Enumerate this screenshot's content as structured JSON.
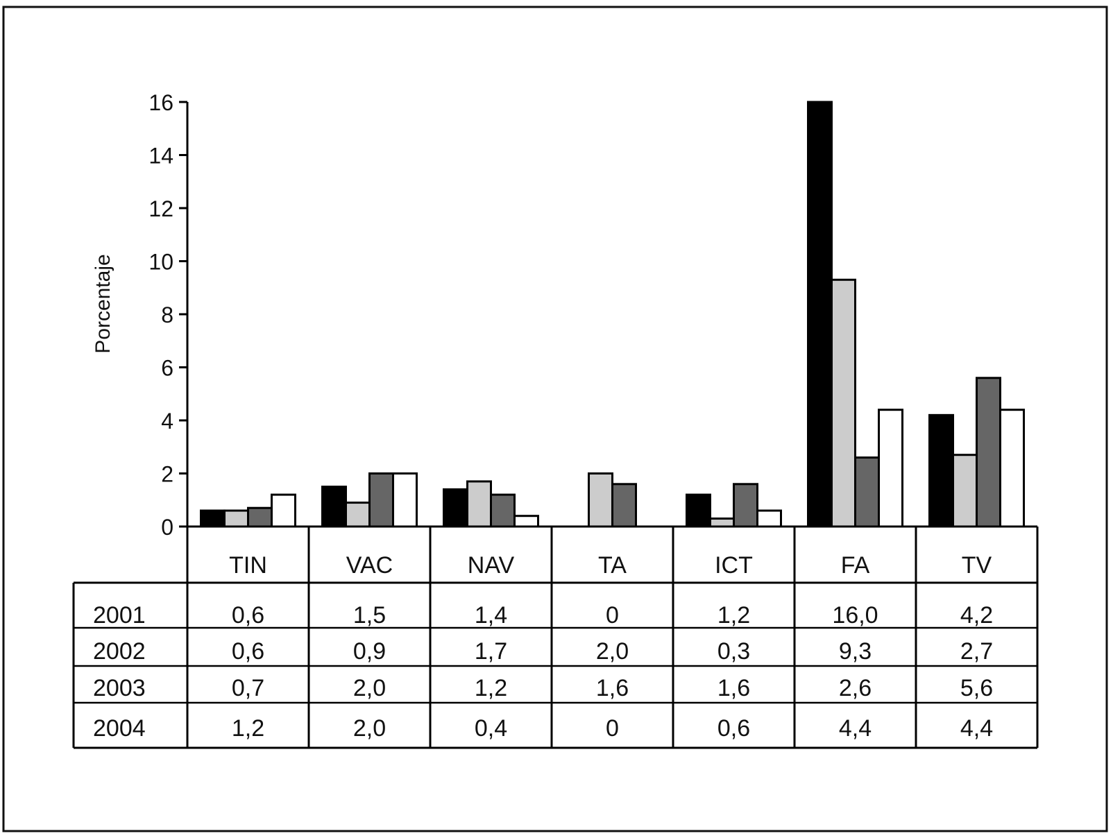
{
  "chart_data": {
    "type": "bar",
    "ylabel": "Porcentaje",
    "ylim": [
      0,
      16
    ],
    "yticks": [
      "0",
      "2",
      "4",
      "6",
      "8",
      "10",
      "12",
      "14",
      "16"
    ],
    "categories": [
      "TIN",
      "VAC",
      "NAV",
      "TA",
      "ICT",
      "FA",
      "TV"
    ],
    "series": [
      {
        "name": "2001",
        "color": "#000000",
        "values": [
          0.6,
          1.5,
          1.4,
          0,
          1.2,
          16.0,
          4.2
        ],
        "labels": [
          "0,6",
          "1,5",
          "1,4",
          "0",
          "1,2",
          "16,0",
          "4,2"
        ]
      },
      {
        "name": "2002",
        "color": "#cccccc",
        "values": [
          0.6,
          0.9,
          1.7,
          2.0,
          0.3,
          9.3,
          2.7
        ],
        "labels": [
          "0,6",
          "0,9",
          "1,7",
          "2,0",
          "0,3",
          "9,3",
          "2,7"
        ]
      },
      {
        "name": "2003",
        "color": "#666666",
        "values": [
          0.7,
          2.0,
          1.2,
          1.6,
          1.6,
          2.6,
          5.6
        ],
        "labels": [
          "0,7",
          "2,0",
          "1,2",
          "1,6",
          "1,6",
          "2,6",
          "5,6"
        ]
      },
      {
        "name": "2004",
        "color": "#ffffff",
        "values": [
          1.2,
          2.0,
          0.4,
          0,
          0.6,
          4.4,
          4.4
        ],
        "labels": [
          "1,2",
          "2,0",
          "0,4",
          "0",
          "0,6",
          "4,4",
          "4,4"
        ]
      }
    ]
  }
}
